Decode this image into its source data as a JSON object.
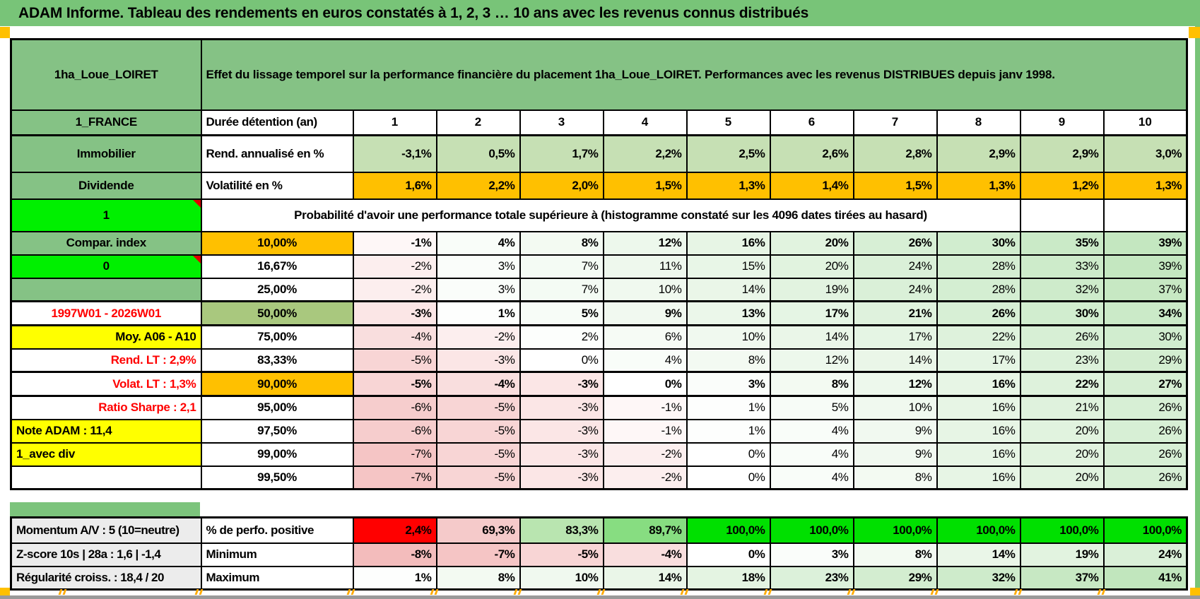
{
  "banner": {
    "title": "ADAM Informe. Tableau des rendements en euros constatés à 1, 2, 3 … 10 ans avec les revenus connus distribués"
  },
  "header": {
    "product": "1ha_Loue_LOIRET",
    "description": "Effet du lissage temporel sur la performance financière du placement 1ha_Loue_LOIRET. Performances avec les revenus DISTRIBUES depuis janv 1998."
  },
  "left_column": [
    {
      "text": "1_FRANCE",
      "style": "green"
    },
    {
      "text": "Immobilier",
      "style": "green"
    },
    {
      "text": "Dividende",
      "style": "green"
    },
    {
      "text": "1",
      "style": "bright",
      "note": true
    },
    {
      "text": "Compar. index",
      "style": "green"
    },
    {
      "text": "0",
      "style": "bright",
      "note": true
    },
    {
      "text": "",
      "style": "green"
    },
    {
      "text": "1997W01 - 2026W01",
      "style": "red-center"
    },
    {
      "text": "Moy. A06 - A10",
      "style": "yellow-right"
    },
    {
      "text": "Rend. LT :   2,9%",
      "style": "red-right"
    },
    {
      "text": "Volat. LT :   1,3%",
      "style": "red-right"
    },
    {
      "text": "Ratio Sharpe :   2,1",
      "style": "red-right"
    },
    {
      "text": "Note ADAM : 11,4",
      "style": "yellow-left"
    },
    {
      "text": "1_avec div",
      "style": "yellow-left"
    },
    {
      "text": "",
      "style": "white"
    }
  ],
  "duration": {
    "label": "Durée détention (an)",
    "columns": [
      "1",
      "2",
      "3",
      "4",
      "5",
      "6",
      "7",
      "8",
      "9",
      "10"
    ]
  },
  "annual_return": {
    "label": "Rend. annualisé en %",
    "values": [
      "-3,1%",
      "0,5%",
      "1,7%",
      "2,2%",
      "2,5%",
      "2,6%",
      "2,8%",
      "2,9%",
      "2,9%",
      "3,0%"
    ]
  },
  "volatility": {
    "label": "Volatilité en %",
    "values": [
      "1,6%",
      "2,2%",
      "2,0%",
      "1,5%",
      "1,3%",
      "1,4%",
      "1,5%",
      "1,3%",
      "1,2%",
      "1,3%"
    ]
  },
  "probability_note": "Probabilité d'avoir une performance totale supérieure à (histogramme constaté sur les 4096 dates tirées au hasard)",
  "probability_rows": [
    {
      "label": "10,00%",
      "style": "orange",
      "emphasis": "bold",
      "values": [
        -1,
        4,
        8,
        12,
        16,
        20,
        26,
        30,
        35,
        39
      ]
    },
    {
      "label": "16,67%",
      "style": "plain",
      "values": [
        -2,
        3,
        7,
        11,
        15,
        20,
        24,
        28,
        33,
        39
      ]
    },
    {
      "label": "25,00%",
      "style": "plain",
      "values": [
        -2,
        3,
        7,
        10,
        14,
        19,
        24,
        28,
        32,
        37
      ]
    },
    {
      "label": "50,00%",
      "style": "green",
      "emphasis": "big",
      "values": [
        -3,
        1,
        5,
        9,
        13,
        17,
        21,
        26,
        30,
        34
      ]
    },
    {
      "label": "75,00%",
      "style": "plain",
      "values": [
        -4,
        -2,
        2,
        6,
        10,
        14,
        17,
        22,
        26,
        30
      ]
    },
    {
      "label": "83,33%",
      "style": "plain",
      "values": [
        -5,
        -3,
        0,
        4,
        8,
        12,
        14,
        17,
        23,
        29
      ]
    },
    {
      "label": "90,00%",
      "style": "orange",
      "emphasis": "bold",
      "values": [
        -5,
        -4,
        -3,
        0,
        3,
        8,
        12,
        16,
        22,
        27
      ]
    },
    {
      "label": "95,00%",
      "style": "plain",
      "values": [
        -6,
        -5,
        -3,
        -1,
        1,
        5,
        10,
        16,
        21,
        26
      ]
    },
    {
      "label": "97,50%",
      "style": "plain",
      "values": [
        -6,
        -5,
        -3,
        -1,
        1,
        4,
        9,
        16,
        20,
        26
      ]
    },
    {
      "label": "99,00%",
      "style": "plain",
      "values": [
        -7,
        -5,
        -3,
        -2,
        0,
        4,
        9,
        16,
        20,
        26
      ]
    },
    {
      "label": "99,50%",
      "style": "plain",
      "values": [
        -7,
        -5,
        -3,
        -2,
        0,
        4,
        8,
        16,
        20,
        26
      ]
    }
  ],
  "bottom": {
    "left_labels": [
      "Momentum A/V : 5 (10=neutre)",
      "Z-score 10s | 28a : 1,6 | -1,4",
      "Régularité croiss. : 18,4 / 20"
    ],
    "rows": [
      {
        "label": "% de perfo. positive",
        "display": [
          "2,4%",
          "69,3%",
          "83,3%",
          "89,7%",
          "100,0%",
          "100,0%",
          "100,0%",
          "100,0%",
          "100,0%",
          "100,0%"
        ],
        "colors": [
          "#ff0000",
          "#f5caca",
          "#b9e5b0",
          "#87dd81",
          "#00e000",
          "#00e000",
          "#00e000",
          "#00e000",
          "#00e000",
          "#00e000"
        ]
      },
      {
        "label": "Minimum",
        "values": [
          -8,
          -7,
          -5,
          -4,
          0,
          3,
          8,
          14,
          19,
          24
        ]
      },
      {
        "label": "Maximum",
        "values": [
          1,
          8,
          10,
          14,
          18,
          23,
          29,
          32,
          37,
          41
        ]
      }
    ]
  },
  "colors": {
    "banner_green": "#78c478",
    "cell_green": "#85c285",
    "bright_green": "#00f000",
    "orange": "#ffc000",
    "yellow": "#ffff00",
    "green_50": "#a9c87e",
    "annual_return_green": "#c6e0b4",
    "red": "#ff0000",
    "negative_shade_max": "#f2b4b4",
    "positive_shade_max": "#bce4b8",
    "gray_label": "#ececec"
  }
}
